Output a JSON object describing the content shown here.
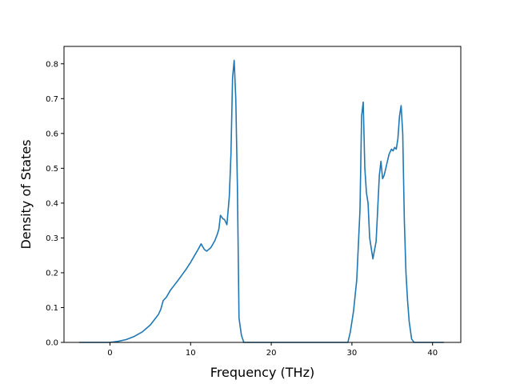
{
  "chart_data": {
    "type": "line",
    "title": "",
    "xlabel": "Frequency (THz)",
    "ylabel": "Density of States",
    "xlim": [
      -5.7,
      43.5
    ],
    "ylim": [
      0,
      0.85
    ],
    "xticks": [
      0,
      10,
      20,
      30,
      40
    ],
    "xtick_labels": [
      "0",
      "10",
      "20",
      "30",
      "40"
    ],
    "yticks": [
      0.0,
      0.1,
      0.2,
      0.3,
      0.4,
      0.5,
      0.6,
      0.7,
      0.8
    ],
    "ytick_labels": [
      "0.0",
      "0.1",
      "0.2",
      "0.3",
      "0.4",
      "0.5",
      "0.6",
      "0.7",
      "0.8"
    ],
    "grid": false,
    "legend": "none",
    "series_color": "#1f77b4",
    "series": [
      {
        "x": [
          -3.8,
          -2,
          0,
          1,
          2,
          3,
          4,
          5,
          5.5,
          6,
          6.3,
          6.6,
          7,
          7.5,
          8,
          8.5,
          9,
          9.5,
          10,
          10.5,
          11,
          11.3,
          11.7,
          12,
          12.5,
          13,
          13.3,
          13.5,
          13.7,
          14,
          14.2,
          14.5,
          14.8,
          15,
          15.2,
          15.4,
          15.6,
          15.8,
          16,
          16.3,
          16.6,
          17,
          20,
          25,
          29.5,
          29.8,
          30.2,
          30.6,
          31,
          31.2,
          31.4,
          31.6,
          31.8,
          32,
          32.2,
          32.4,
          32.6,
          33,
          33.4,
          33.6,
          33.8,
          34,
          34.3,
          34.6,
          34.9,
          35.1,
          35.3,
          35.5,
          35.7,
          35.9,
          36.1,
          36.3,
          36.5,
          36.7,
          36.9,
          37.1,
          37.4,
          37.7,
          38,
          39,
          40,
          41.4
        ],
        "y": [
          0.0,
          0.0,
          0.0,
          0.003,
          0.008,
          0.017,
          0.03,
          0.05,
          0.065,
          0.08,
          0.095,
          0.12,
          0.13,
          0.15,
          0.165,
          0.18,
          0.196,
          0.212,
          0.23,
          0.25,
          0.27,
          0.283,
          0.267,
          0.262,
          0.272,
          0.292,
          0.31,
          0.325,
          0.365,
          0.355,
          0.353,
          0.338,
          0.42,
          0.54,
          0.76,
          0.81,
          0.7,
          0.45,
          0.07,
          0.02,
          0.0,
          0.0,
          0.0,
          0.0,
          0.0,
          0.03,
          0.09,
          0.18,
          0.38,
          0.65,
          0.69,
          0.5,
          0.43,
          0.4,
          0.3,
          0.27,
          0.24,
          0.29,
          0.48,
          0.52,
          0.47,
          0.48,
          0.51,
          0.54,
          0.555,
          0.55,
          0.56,
          0.555,
          0.585,
          0.65,
          0.68,
          0.6,
          0.35,
          0.2,
          0.12,
          0.06,
          0.01,
          0.0,
          0.0,
          0.0,
          0.0,
          0.0
        ]
      }
    ]
  }
}
